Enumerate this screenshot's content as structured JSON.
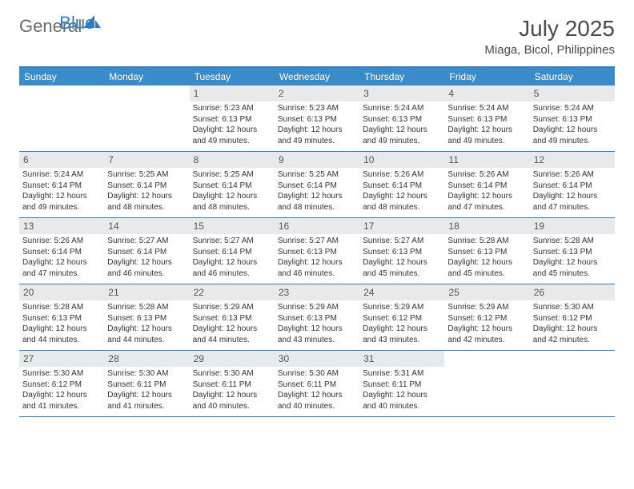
{
  "logo": {
    "text1": "General",
    "text2": "Blue",
    "text1_color": "#6b6b6b",
    "text2_color": "#2f7bbf",
    "icon_color": "#2f7bbf"
  },
  "title": "July 2025",
  "location": "Miaga, Bicol, Philippines",
  "colors": {
    "header_bg": "#3a8bc9",
    "border": "#2f7bbf",
    "daynum_bg": "#e8e9ea",
    "text": "#333333",
    "title_text": "#4a4a4a"
  },
  "day_names": [
    "Sunday",
    "Monday",
    "Tuesday",
    "Wednesday",
    "Thursday",
    "Friday",
    "Saturday"
  ],
  "weeks": [
    [
      null,
      null,
      {
        "n": "1",
        "sr": "5:23 AM",
        "ss": "6:13 PM",
        "dl": "12 hours and 49 minutes."
      },
      {
        "n": "2",
        "sr": "5:23 AM",
        "ss": "6:13 PM",
        "dl": "12 hours and 49 minutes."
      },
      {
        "n": "3",
        "sr": "5:24 AM",
        "ss": "6:13 PM",
        "dl": "12 hours and 49 minutes."
      },
      {
        "n": "4",
        "sr": "5:24 AM",
        "ss": "6:13 PM",
        "dl": "12 hours and 49 minutes."
      },
      {
        "n": "5",
        "sr": "5:24 AM",
        "ss": "6:13 PM",
        "dl": "12 hours and 49 minutes."
      }
    ],
    [
      {
        "n": "6",
        "sr": "5:24 AM",
        "ss": "6:14 PM",
        "dl": "12 hours and 49 minutes."
      },
      {
        "n": "7",
        "sr": "5:25 AM",
        "ss": "6:14 PM",
        "dl": "12 hours and 48 minutes."
      },
      {
        "n": "8",
        "sr": "5:25 AM",
        "ss": "6:14 PM",
        "dl": "12 hours and 48 minutes."
      },
      {
        "n": "9",
        "sr": "5:25 AM",
        "ss": "6:14 PM",
        "dl": "12 hours and 48 minutes."
      },
      {
        "n": "10",
        "sr": "5:26 AM",
        "ss": "6:14 PM",
        "dl": "12 hours and 48 minutes."
      },
      {
        "n": "11",
        "sr": "5:26 AM",
        "ss": "6:14 PM",
        "dl": "12 hours and 47 minutes."
      },
      {
        "n": "12",
        "sr": "5:26 AM",
        "ss": "6:14 PM",
        "dl": "12 hours and 47 minutes."
      }
    ],
    [
      {
        "n": "13",
        "sr": "5:26 AM",
        "ss": "6:14 PM",
        "dl": "12 hours and 47 minutes."
      },
      {
        "n": "14",
        "sr": "5:27 AM",
        "ss": "6:14 PM",
        "dl": "12 hours and 46 minutes."
      },
      {
        "n": "15",
        "sr": "5:27 AM",
        "ss": "6:14 PM",
        "dl": "12 hours and 46 minutes."
      },
      {
        "n": "16",
        "sr": "5:27 AM",
        "ss": "6:13 PM",
        "dl": "12 hours and 46 minutes."
      },
      {
        "n": "17",
        "sr": "5:27 AM",
        "ss": "6:13 PM",
        "dl": "12 hours and 45 minutes."
      },
      {
        "n": "18",
        "sr": "5:28 AM",
        "ss": "6:13 PM",
        "dl": "12 hours and 45 minutes."
      },
      {
        "n": "19",
        "sr": "5:28 AM",
        "ss": "6:13 PM",
        "dl": "12 hours and 45 minutes."
      }
    ],
    [
      {
        "n": "20",
        "sr": "5:28 AM",
        "ss": "6:13 PM",
        "dl": "12 hours and 44 minutes."
      },
      {
        "n": "21",
        "sr": "5:28 AM",
        "ss": "6:13 PM",
        "dl": "12 hours and 44 minutes."
      },
      {
        "n": "22",
        "sr": "5:29 AM",
        "ss": "6:13 PM",
        "dl": "12 hours and 44 minutes."
      },
      {
        "n": "23",
        "sr": "5:29 AM",
        "ss": "6:13 PM",
        "dl": "12 hours and 43 minutes."
      },
      {
        "n": "24",
        "sr": "5:29 AM",
        "ss": "6:12 PM",
        "dl": "12 hours and 43 minutes."
      },
      {
        "n": "25",
        "sr": "5:29 AM",
        "ss": "6:12 PM",
        "dl": "12 hours and 42 minutes."
      },
      {
        "n": "26",
        "sr": "5:30 AM",
        "ss": "6:12 PM",
        "dl": "12 hours and 42 minutes."
      }
    ],
    [
      {
        "n": "27",
        "sr": "5:30 AM",
        "ss": "6:12 PM",
        "dl": "12 hours and 41 minutes."
      },
      {
        "n": "28",
        "sr": "5:30 AM",
        "ss": "6:11 PM",
        "dl": "12 hours and 41 minutes."
      },
      {
        "n": "29",
        "sr": "5:30 AM",
        "ss": "6:11 PM",
        "dl": "12 hours and 40 minutes."
      },
      {
        "n": "30",
        "sr": "5:30 AM",
        "ss": "6:11 PM",
        "dl": "12 hours and 40 minutes."
      },
      {
        "n": "31",
        "sr": "5:31 AM",
        "ss": "6:11 PM",
        "dl": "12 hours and 40 minutes."
      },
      null,
      null
    ]
  ],
  "labels": {
    "sunrise": "Sunrise:",
    "sunset": "Sunset:",
    "daylight": "Daylight:"
  }
}
